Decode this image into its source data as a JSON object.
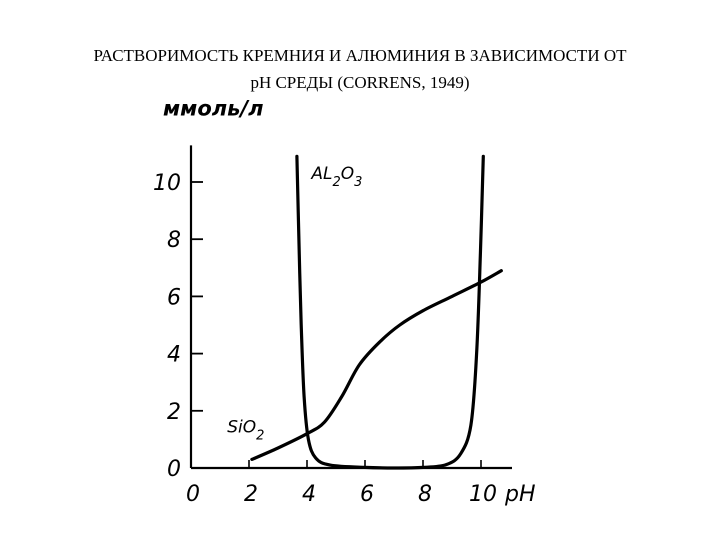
{
  "slide": {
    "title_line1": "РАСТВОРИМОСТЬ КРЕМНИЯ И АЛЮМИНИЯ В ЗАВИСИМОСТИ ОТ",
    "title_line2": "pH СРЕДЫ (CORRENS, 1949)"
  },
  "chart_data": {
    "type": "line",
    "title": "",
    "xlabel": "pH",
    "ylabel": "ммоль/л",
    "xlim": [
      0,
      11
    ],
    "ylim": [
      0,
      11
    ],
    "x_ticks": [
      0,
      2,
      4,
      6,
      8,
      10
    ],
    "x_tick_labels": [
      "0",
      "2",
      "4",
      "6",
      "8",
      "10"
    ],
    "y_ticks": [
      0,
      2,
      4,
      6,
      8,
      10
    ],
    "y_tick_labels": [
      "0",
      "2",
      "4",
      "6",
      "8",
      "10"
    ],
    "grid": false,
    "legend": "none",
    "series": [
      {
        "name": "SiO2",
        "label_main": "SiO",
        "label_sub": "2",
        "x": [
          2.1,
          3.0,
          4.0,
          4.6,
          5.2,
          5.8,
          6.5,
          7.2,
          8.0,
          9.0,
          10.0,
          10.7
        ],
        "y": [
          0.3,
          0.7,
          1.2,
          1.6,
          2.5,
          3.6,
          4.4,
          5.0,
          5.5,
          6.0,
          6.5,
          6.9
        ]
      },
      {
        "name": "Al2O3",
        "label_main": "AL",
        "label_sub1": "2",
        "label_mid": "O",
        "label_sub2": "3",
        "x": [
          3.65,
          3.72,
          3.8,
          3.9,
          4.05,
          4.3,
          4.8,
          6.0,
          7.0,
          8.0,
          8.8,
          9.3,
          9.65,
          9.85,
          9.98,
          10.08
        ],
        "y": [
          10.9,
          8.0,
          5.0,
          2.5,
          1.0,
          0.35,
          0.1,
          0.02,
          0.0,
          0.02,
          0.12,
          0.5,
          1.5,
          4.0,
          7.5,
          10.9
        ]
      }
    ]
  }
}
